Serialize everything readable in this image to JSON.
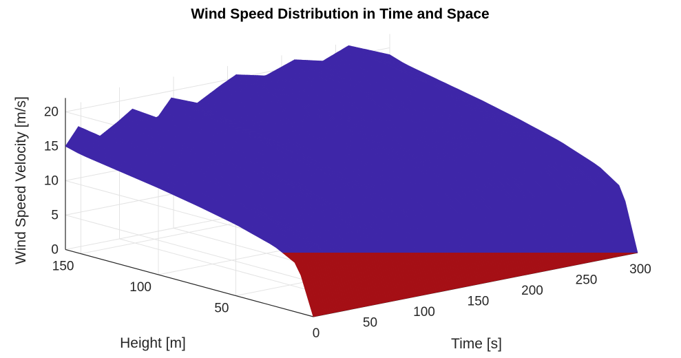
{
  "chart_data": {
    "type": "surface",
    "title": "Wind Speed Distribution in Time and Space",
    "xlabel": "Time [s]",
    "ylabel": "Height [m]",
    "zlabel": "Wind Speed Velocity [m/s]",
    "x_ticks": [
      "0",
      "50",
      "100",
      "150",
      "200",
      "250",
      "300"
    ],
    "y_ticks": [
      "50",
      "100",
      "150"
    ],
    "z_ticks": [
      "0",
      "5",
      "10",
      "15",
      "20"
    ],
    "xlim": [
      0,
      300
    ],
    "ylim": [
      0,
      160
    ],
    "zlim": [
      0,
      22
    ],
    "colormap": [
      "#3e26a8",
      "#1f60d6",
      "#28a8e6",
      "#5ed0c8",
      "#b8d94e",
      "#f7d434",
      "#f6861f",
      "#e32a1e",
      "#a50f15"
    ],
    "grid": true,
    "peak_time_s": [
      0,
      12,
      32,
      48,
      62,
      85,
      98,
      122,
      145,
      158,
      185,
      212,
      238,
      262,
      300
    ],
    "peak_speed_at_top_ms": [
      15.0,
      17.5,
      15.5,
      17.0,
      18.5,
      16.5,
      19.0,
      17.5,
      19.5,
      20.5,
      19.5,
      21.0,
      20.0,
      21.5,
      19.0
    ],
    "height_profile_m": [
      0,
      10,
      25,
      50,
      75,
      100,
      125,
      150,
      160
    ],
    "height_profile_relative_speed": [
      0.0,
      0.46,
      0.58,
      0.69,
      0.77,
      0.84,
      0.9,
      0.96,
      1.0
    ]
  }
}
